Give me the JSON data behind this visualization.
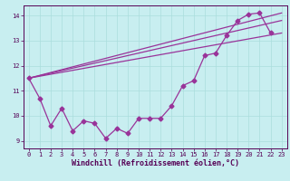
{
  "title": "",
  "xlabel": "Windchill (Refroidissement éolien,°C)",
  "ylabel": "",
  "bg_color": "#c8eef0",
  "line_color": "#993399",
  "grid_color": "#aadddd",
  "axis_color": "#550055",
  "xlim": [
    -0.5,
    23.5
  ],
  "ylim": [
    8.7,
    14.4
  ],
  "yticks": [
    9,
    10,
    11,
    12,
    13,
    14
  ],
  "xticks": [
    0,
    1,
    2,
    3,
    4,
    5,
    6,
    7,
    8,
    9,
    10,
    11,
    12,
    13,
    14,
    15,
    16,
    17,
    18,
    19,
    20,
    21,
    22,
    23
  ],
  "line1_x": [
    0,
    1,
    2,
    3,
    4,
    5,
    6,
    7,
    8,
    9,
    10,
    11,
    12,
    13,
    14,
    15,
    16,
    17,
    18,
    19,
    20,
    21,
    22
  ],
  "line1_y": [
    11.5,
    10.7,
    9.6,
    10.3,
    9.4,
    9.8,
    9.7,
    9.1,
    9.5,
    9.3,
    9.9,
    9.9,
    9.9,
    10.4,
    11.2,
    11.4,
    12.4,
    12.5,
    13.2,
    13.8,
    14.05,
    14.1,
    13.3
  ],
  "line2_x": [
    0,
    23
  ],
  "line2_y": [
    11.5,
    13.3
  ],
  "line3_x": [
    0,
    23
  ],
  "line3_y": [
    11.5,
    14.1
  ],
  "line4_x": [
    0,
    23
  ],
  "line4_y": [
    11.5,
    13.8
  ],
  "marker": "D",
  "markersize": 2.5,
  "linewidth": 0.9,
  "tick_fontsize": 5.0,
  "xlabel_fontsize": 6.0
}
